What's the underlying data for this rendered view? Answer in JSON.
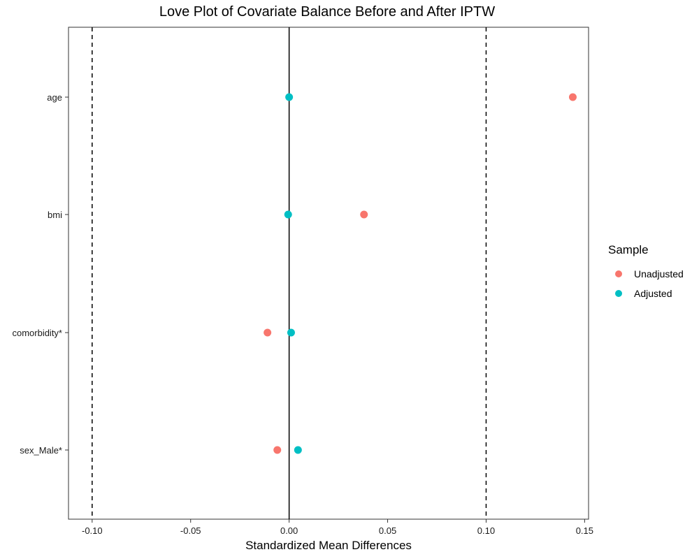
{
  "chart_data": {
    "type": "scatter",
    "title": "Love Plot of Covariate Balance Before and After IPTW",
    "xlabel": "Standardized Mean Differences",
    "ylabel": "",
    "categories": [
      "age",
      "bmi",
      "comorbidity*",
      "sex_Male*"
    ],
    "xlim": [
      -0.112,
      0.152
    ],
    "xticks": [
      -0.1,
      -0.05,
      0.0,
      0.05,
      0.1,
      0.15
    ],
    "xtick_labels": [
      "-0.10",
      "-0.05",
      "0.00",
      "0.05",
      "0.10",
      "0.15"
    ],
    "reference_lines": [
      {
        "x": -0.1,
        "style": "dashed"
      },
      {
        "x": 0.0,
        "style": "solid"
      },
      {
        "x": 0.1,
        "style": "dashed"
      }
    ],
    "series": [
      {
        "name": "Unadjusted",
        "color": "#F8766D",
        "values": [
          0.144,
          0.038,
          -0.011,
          -0.006
        ]
      },
      {
        "name": "Adjusted",
        "color": "#00BFC4",
        "values": [
          0.0,
          -0.0005,
          0.001,
          0.0045
        ]
      }
    ],
    "legend": {
      "title": "Sample",
      "position": "right"
    },
    "grid": false
  }
}
